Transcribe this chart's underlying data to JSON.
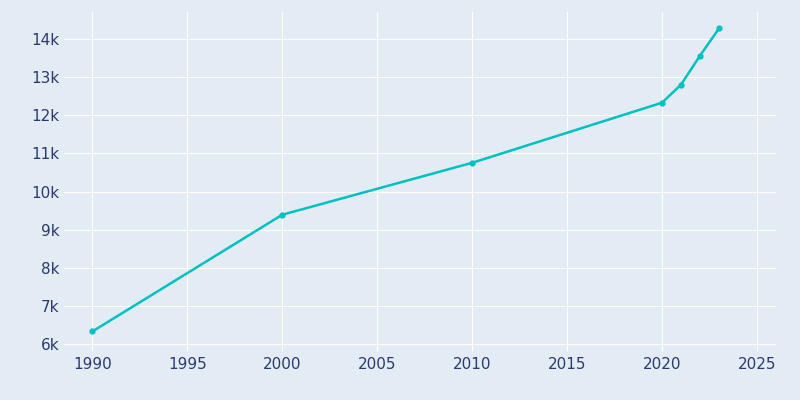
{
  "years": [
    1990,
    2000,
    2010,
    2020,
    2021,
    2022,
    2023
  ],
  "population": [
    6339,
    9394,
    10753,
    12326,
    12800,
    13559,
    14271
  ],
  "line_color": "#00C0C0",
  "background_color": "#E3ECF4",
  "grid_color": "#FFFFFF",
  "text_color": "#2B3A6B",
  "xlim": [
    1988.5,
    2026
  ],
  "ylim": [
    5800,
    14700
  ],
  "xticks": [
    1990,
    1995,
    2000,
    2005,
    2010,
    2015,
    2020,
    2025
  ],
  "yticks": [
    6000,
    7000,
    8000,
    9000,
    10000,
    11000,
    12000,
    13000,
    14000
  ],
  "ytick_labels": [
    "6k",
    "7k",
    "8k",
    "9k",
    "10k",
    "11k",
    "12k",
    "13k",
    "14k"
  ],
  "linewidth": 1.8,
  "marker": "o",
  "marker_size": 3.5,
  "tick_fontsize": 11
}
